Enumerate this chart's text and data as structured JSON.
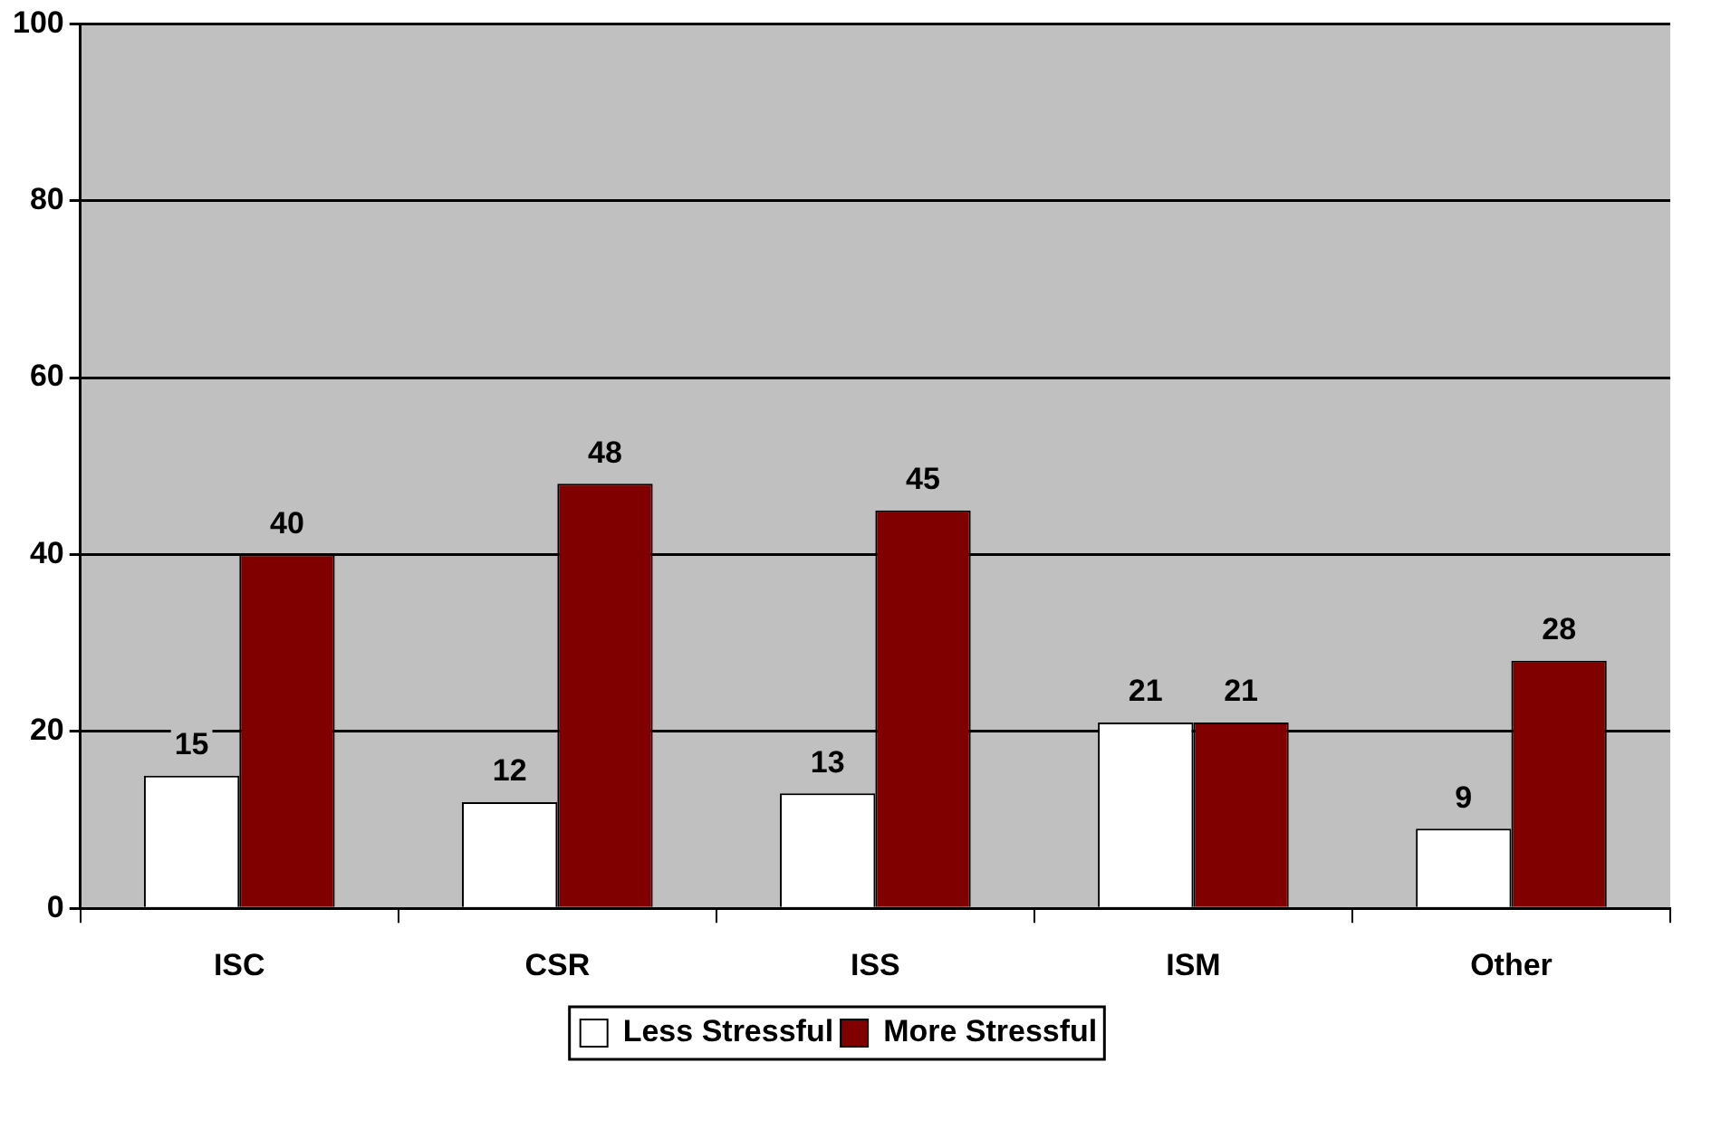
{
  "chart_data": {
    "type": "bar",
    "categories": [
      "ISC",
      "CSR",
      "ISS",
      "ISM",
      "Other"
    ],
    "series": [
      {
        "name": "Less Stressful",
        "color": "#ffffff",
        "values": [
          15,
          12,
          13,
          21,
          9
        ]
      },
      {
        "name": "More Stressful",
        "color": "#800000",
        "values": [
          40,
          48,
          45,
          21,
          28
        ]
      }
    ],
    "ylim": [
      0,
      100
    ],
    "yticks": [
      0,
      20,
      40,
      60,
      80,
      100
    ],
    "grid": "y",
    "legend": "bottom",
    "data_labels": true
  }
}
